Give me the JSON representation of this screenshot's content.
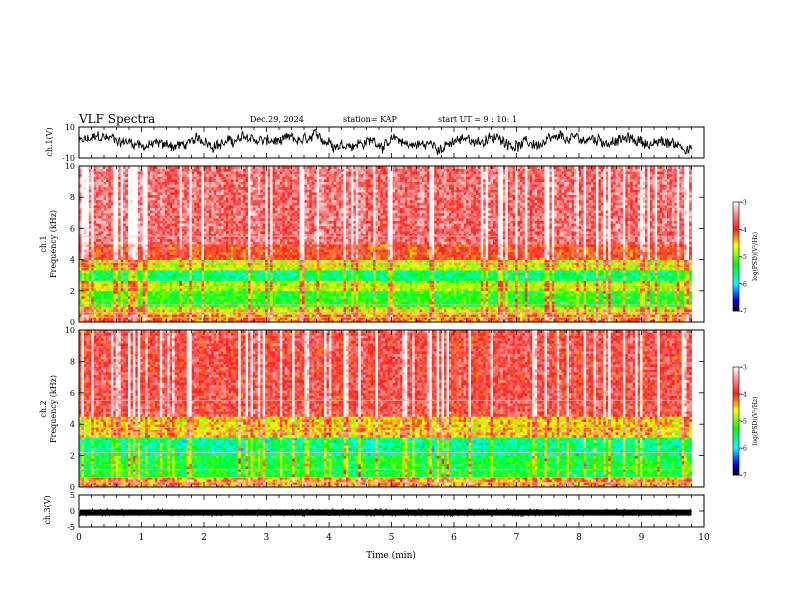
{
  "header": {
    "title": "VLF Spectra",
    "date": "Dec.29, 2024",
    "station": "station= KAP",
    "start": "start  UT =   9 : 10: 1"
  },
  "colorbar": {
    "label": "log(PSD)(V²/Hz)",
    "ticks": [
      "-3",
      "-4",
      "-5",
      "-6",
      "-7"
    ],
    "colors": [
      "#ffffff",
      "#ff9999",
      "#ff2020",
      "#ffff00",
      "#00ff00",
      "#00ffff",
      "#0000ff",
      "#000000"
    ]
  },
  "chart_data": [
    {
      "type": "line",
      "name": "ch1-waveform",
      "ylabel": "ch.1(V)",
      "ylim": [
        -10,
        10
      ],
      "ytick_labels": [
        "10",
        "-10"
      ],
      "xlim": [
        0,
        10
      ],
      "description_values": "noisy waveform oscillating roughly between -9 and 8 V over 0–9.8 min",
      "x_end": 9.8
    },
    {
      "type": "heatmap",
      "name": "ch1-spectrogram",
      "ylabel": "ch.1\nFrequency (kHz)",
      "ylim": [
        0,
        10
      ],
      "ytick_labels": [
        "0",
        "2",
        "4",
        "6",
        "8",
        "10"
      ],
      "xlim": [
        0,
        10
      ],
      "x_end": 9.8,
      "zlim": [
        -7,
        -3
      ],
      "zlabel": "log(PSD)(V²/Hz)",
      "bands": [
        {
          "from": 0.0,
          "to": 0.5,
          "level": -4.2
        },
        {
          "from": 0.5,
          "to": 1.0,
          "level": -4.6
        },
        {
          "from": 1.0,
          "to": 2.0,
          "level": -5.3
        },
        {
          "from": 2.0,
          "to": 2.6,
          "level": -4.8
        },
        {
          "from": 2.6,
          "to": 3.3,
          "level": -5.6
        },
        {
          "from": 3.3,
          "to": 4.0,
          "level": -4.7
        },
        {
          "from": 4.0,
          "to": 5.0,
          "level": -4.0
        },
        {
          "from": 5.0,
          "to": 10.0,
          "level": -3.6
        }
      ]
    },
    {
      "type": "heatmap",
      "name": "ch2-spectrogram",
      "ylabel": "ch.2\nFrequency (kHz)",
      "ylim": [
        0,
        10
      ],
      "ytick_labels": [
        "0",
        "2",
        "4",
        "6",
        "8",
        "10"
      ],
      "xlim": [
        0,
        10
      ],
      "x_end": 9.8,
      "zlim": [
        -7,
        -3
      ],
      "zlabel": "log(PSD)(V²/Hz)",
      "bands": [
        {
          "from": 0.0,
          "to": 0.6,
          "level": -4.4
        },
        {
          "from": 0.6,
          "to": 2.0,
          "level": -5.4
        },
        {
          "from": 2.0,
          "to": 3.1,
          "level": -5.7
        },
        {
          "from": 3.1,
          "to": 4.5,
          "level": -4.5
        },
        {
          "from": 4.5,
          "to": 10.0,
          "level": -3.8
        }
      ]
    },
    {
      "type": "line",
      "name": "ch3-waveform",
      "ylabel": "ch.3(V)",
      "ylim": [
        -5,
        5
      ],
      "ytick_labels": [
        "5",
        "0",
        "-5"
      ],
      "xlim": [
        0,
        10
      ],
      "x_end": 9.8,
      "description_values": "thick near-constant trace around -0.5 V"
    }
  ],
  "xaxis": {
    "label": "Time  (min)",
    "ticks": [
      "0",
      "1",
      "2",
      "3",
      "4",
      "5",
      "6",
      "7",
      "8",
      "9",
      "10"
    ]
  }
}
